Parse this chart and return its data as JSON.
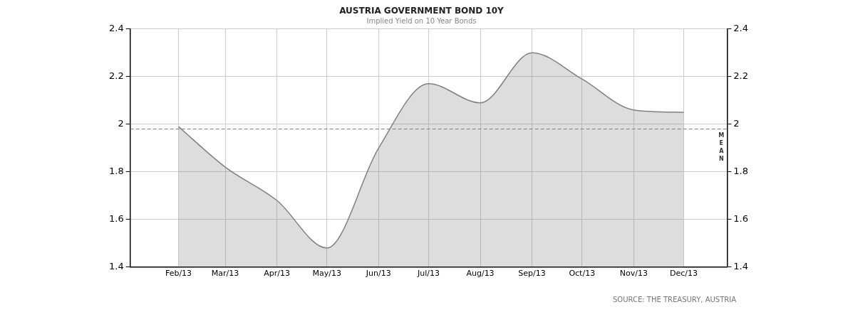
{
  "chart_data": {
    "type": "area",
    "title": "AUSTRIA GOVERNMENT BOND 10Y",
    "subtitle": "Implied Yield on 10 Year Bonds",
    "x": [
      "2013-02-01",
      "2013-03-01",
      "2013-04-01",
      "2013-05-01",
      "2013-06-01",
      "2013-07-01",
      "2013-08-01",
      "2013-09-01",
      "2013-10-01",
      "2013-11-01",
      "2013-12-01"
    ],
    "series": [
      {
        "color": "#808080",
        "values": [
          1.99,
          1.82,
          1.68,
          1.48,
          1.9,
          2.17,
          2.09,
          2.3,
          2.19,
          2.06,
          2.05
        ]
      }
    ],
    "xlim": [
      "2013-01-03",
      "2013-12-27"
    ],
    "xticks": [
      {
        "value": "2013-02-01",
        "label": "Feb/13"
      },
      {
        "value": "2013-03-01",
        "label": "Mar/13"
      },
      {
        "value": "2013-04-01",
        "label": "Apr/13"
      },
      {
        "value": "2013-05-01",
        "label": "May/13"
      },
      {
        "value": "2013-06-01",
        "label": "Jun/13"
      },
      {
        "value": "2013-07-01",
        "label": "Jul/13"
      },
      {
        "value": "2013-08-01",
        "label": "Aug/13"
      },
      {
        "value": "2013-09-01",
        "label": "Sep/13"
      },
      {
        "value": "2013-10-01",
        "label": "Oct/13"
      },
      {
        "value": "2013-11-01",
        "label": "Nov/13"
      },
      {
        "value": "2013-12-01",
        "label": "Dec/13"
      }
    ],
    "ylim": [
      1.4,
      2.4
    ],
    "yticks": [
      1.4,
      1.6,
      1.8,
      2,
      2.2,
      2.4
    ],
    "y2lim": [
      1.4,
      2.4
    ],
    "y2ticks": [
      1.4,
      1.6,
      1.8,
      2,
      2.2,
      2.4
    ],
    "ref_lines": [
      {
        "axis": "y",
        "value": 1.98,
        "label": "MEAN",
        "color": "#808080",
        "line_style": "dashed"
      }
    ],
    "annotations": [
      "SOURCE: THE TREASURY, AUSTRIA"
    ],
    "grid": true,
    "legend": false,
    "marker": "none",
    "line_style": "solid"
  }
}
